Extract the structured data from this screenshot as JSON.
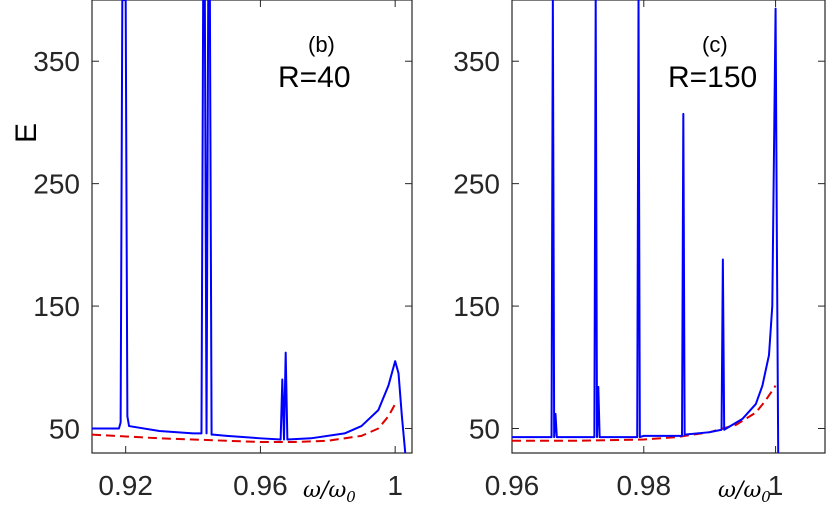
{
  "ylabel": "E",
  "xvar_label": "ω/ω",
  "xvar_sub": "0",
  "chart_data": [
    {
      "type": "line",
      "panel_label": "(b)",
      "annotation": "R=40",
      "ylabel": "E",
      "xlim": [
        0.91,
        1.005
      ],
      "ylim": [
        30,
        400
      ],
      "xticks": [
        0.92,
        0.96,
        1
      ],
      "xtick_labels": [
        "0.92",
        "0.96",
        "1"
      ],
      "yticks": [
        50,
        150,
        250,
        350
      ],
      "ytick_labels": [
        "50",
        "150",
        "250",
        "350"
      ],
      "series": [
        {
          "color": "#0000ff",
          "style": "solid",
          "x": [
            0.91,
            0.915,
            0.918,
            0.9185,
            0.919,
            0.9195,
            0.92,
            0.9205,
            0.921,
            0.93,
            0.94,
            0.9425,
            0.943,
            0.9435,
            0.944,
            0.9445,
            0.945,
            0.9455,
            0.946,
            0.95,
            0.96,
            0.966,
            0.9665,
            0.967,
            0.9675,
            0.968,
            0.975,
            0.985,
            0.99,
            0.995,
            0.998,
            1.0,
            1.001,
            1.002,
            1.003
          ],
          "y": [
            50,
            50,
            50,
            55,
            400,
            400,
            400,
            60,
            52,
            48,
            46,
            46,
            400,
            400,
            46,
            400,
            400,
            45,
            45,
            44,
            42,
            41,
            90,
            41,
            112,
            41,
            42,
            46,
            52,
            65,
            85,
            105,
            95,
            60,
            30
          ]
        },
        {
          "color": "#dd0000",
          "style": "dashed",
          "x": [
            0.91,
            0.93,
            0.95,
            0.96,
            0.97,
            0.98,
            0.99,
            0.995,
            0.998,
            1.0
          ],
          "y": [
            45,
            42,
            40,
            39,
            39,
            40,
            44,
            50,
            60,
            70
          ]
        }
      ]
    },
    {
      "type": "line",
      "panel_label": "(c)",
      "annotation": "R=150",
      "xlim": [
        0.96,
        1.0075
      ],
      "ylim": [
        30,
        400
      ],
      "xticks": [
        0.96,
        0.98,
        1
      ],
      "xtick_labels": [
        "0.96",
        "0.98",
        "1"
      ],
      "yticks": [
        50,
        150,
        250,
        350
      ],
      "ytick_labels": [
        "50",
        "150",
        "250",
        "350"
      ],
      "series": [
        {
          "color": "#0000ff",
          "style": "solid",
          "x": [
            0.96,
            0.966,
            0.9662,
            0.9664,
            0.9666,
            0.9668,
            0.967,
            0.9725,
            0.9727,
            0.9729,
            0.9731,
            0.9733,
            0.9735,
            0.9735,
            0.979,
            0.9792,
            0.9794,
            0.98,
            0.9858,
            0.986,
            0.9862,
            0.99,
            0.9918,
            0.992,
            0.9922,
            0.995,
            0.997,
            0.998,
            0.999,
            0.9995,
            1.0,
            1.0002,
            1.0004
          ],
          "y": [
            43,
            43,
            400,
            43,
            62,
            43,
            43,
            43,
            400,
            43,
            84,
            43,
            43,
            43,
            43,
            400,
            43,
            44,
            44,
            307,
            45,
            47,
            49,
            188,
            49,
            58,
            70,
            85,
            110,
            150,
            393,
            200,
            30
          ]
        },
        {
          "color": "#dd0000",
          "style": "dashed",
          "x": [
            0.96,
            0.97,
            0.98,
            0.985,
            0.99,
            0.994,
            0.997,
            0.9985,
            1.0
          ],
          "y": [
            40,
            40,
            41,
            43,
            47,
            53,
            63,
            73,
            85
          ]
        }
      ]
    }
  ]
}
